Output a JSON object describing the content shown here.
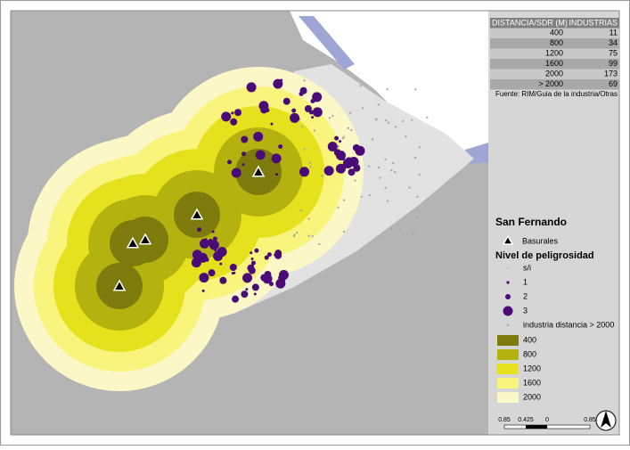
{
  "table": {
    "headers": [
      "DISTANCIA/SDR (M)",
      "INDUSTRIAS"
    ],
    "rows": [
      [
        "400",
        "11"
      ],
      [
        "800",
        "34"
      ],
      [
        "1200",
        "75"
      ],
      [
        "1600",
        "99"
      ],
      [
        "2000",
        "173"
      ],
      [
        "> 2000",
        "69"
      ]
    ]
  },
  "source": "Fuente: RIM/Guia de la industria/Otras",
  "legend": {
    "title": "San Fernando",
    "landfill": "Basurales",
    "hazard_title": "Nivel de peligrosidad",
    "hazard_levels": [
      "s/i",
      "1",
      "2",
      "3"
    ],
    "far_industry": "industria distancia > 2000",
    "buffers": [
      "400",
      "800",
      "1200",
      "1600",
      "2000"
    ]
  },
  "scale_bar": {
    "labels": [
      "0.85",
      "0.425",
      "0",
      "0.85"
    ]
  }
}
